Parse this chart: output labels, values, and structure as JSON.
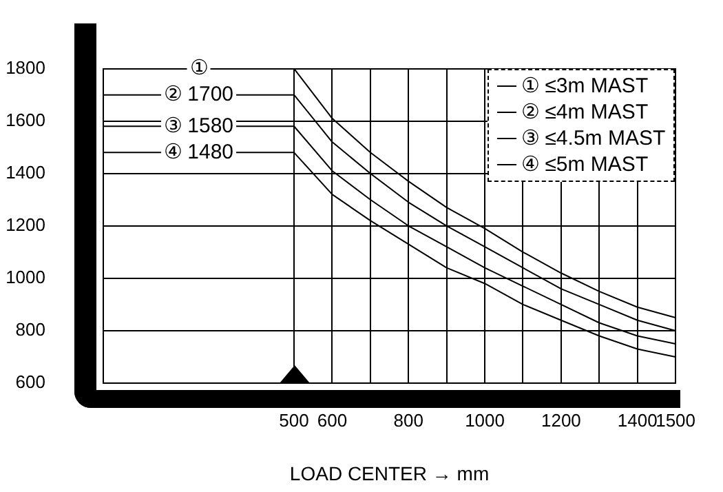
{
  "chart_data": {
    "type": "line",
    "xlabel": "LOAD CENTER → mm",
    "xlim": [
      0,
      1500
    ],
    "xticks": [
      500,
      600,
      {
        "value": 700,
        "label": null
      },
      800,
      {
        "value": 900,
        "label": null
      },
      1000,
      {
        "value": 1100,
        "label": null
      },
      1200,
      {
        "value": 1300,
        "label": null
      },
      1400,
      1500
    ],
    "ylim": [
      600,
      1800
    ],
    "yticks": [
      600,
      800,
      1000,
      1200,
      1400,
      1600,
      1800
    ],
    "grid": true,
    "legend": "top right",
    "marker": "none",
    "line_style": "solid",
    "x": [
      0,
      500,
      600,
      700,
      800,
      900,
      1000,
      1100,
      1200,
      1300,
      1400,
      1500
    ],
    "series": [
      {
        "name": "① ≤3m MAST",
        "color": "#000000",
        "values": [
          1800,
          1800,
          1610,
          1480,
          1370,
          1270,
          1190,
          1100,
          1020,
          950,
          890,
          850
        ]
      },
      {
        "name": "② ≤4m MAST",
        "color": "#000000",
        "values": [
          1700,
          1700,
          1520,
          1400,
          1290,
          1200,
          1120,
          1040,
          960,
          900,
          840,
          800
        ]
      },
      {
        "name": "③ ≤4.5m MAST",
        "color": "#000000",
        "values": [
          1580,
          1580,
          1410,
          1300,
          1200,
          1120,
          1040,
          970,
          900,
          830,
          780,
          750
        ]
      },
      {
        "name": "④ ≤5m MAST",
        "color": "#000000",
        "values": [
          1480,
          1480,
          1320,
          1220,
          1130,
          1040,
          980,
          900,
          840,
          780,
          730,
          700
        ]
      }
    ],
    "annotations": [
      {
        "text": "①",
        "y": 1800
      },
      {
        "text": "② 1700",
        "y": 1700
      },
      {
        "text": "③ 1580",
        "y": 1580
      },
      {
        "text": "④ 1480",
        "y": 1480
      }
    ]
  }
}
